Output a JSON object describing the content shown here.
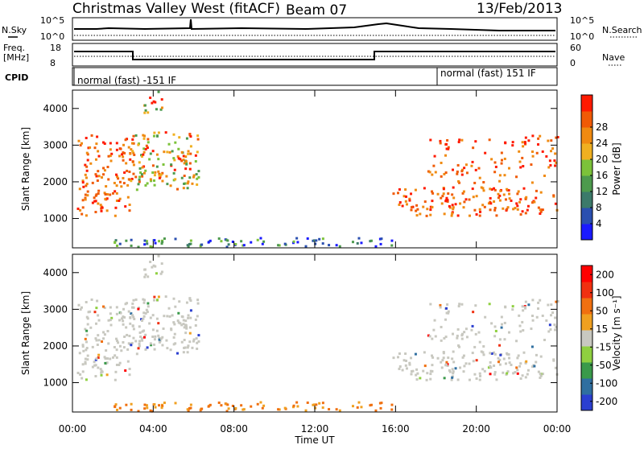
{
  "header": {
    "station": "Christmas Valley West (fitACF)",
    "beam": "Beam 07",
    "date": "13/Feb/2013"
  },
  "nsky_panel": {
    "left_label": "N.Sky",
    "left_ticks": [
      "10^5",
      "10^0"
    ],
    "right_label": "N.Search",
    "right_ticks": [
      "10^5",
      "10^0"
    ]
  },
  "freq_panel": {
    "left_label_1": "Freq.",
    "left_label_2": "[MHz]",
    "left_ticks": [
      "18",
      "8"
    ],
    "right_label": "Nave",
    "right_ticks": [
      "60",
      "0"
    ]
  },
  "cpid_panel": {
    "label": "CPID",
    "mode_1": "normal (fast) -151 IF",
    "mode_2": "normal (fast) 151 IF"
  },
  "colors": {
    "power_scale": [
      "#1a1aff",
      "#2a4fb0",
      "#3c7a6a",
      "#4d9a4d",
      "#7cc23a",
      "#f0b020",
      "#f08a10",
      "#f05a05",
      "#ff1a00"
    ],
    "velocity_scale": [
      "#2b3fd0",
      "#2f6fa0",
      "#3a9a4a",
      "#8fd040",
      "#c8c8c0",
      "#f0a020",
      "#f07010",
      "#f03010",
      "#ff0000"
    ]
  },
  "chart_data": [
    {
      "type": "heatmap",
      "panel": "power",
      "ylabel": "Slant Range [km]",
      "yticks": [
        "1000",
        "2000",
        "3000",
        "4000"
      ],
      "ylim": [
        200,
        4500
      ],
      "xticks": [
        "00:00",
        "04:00",
        "08:00",
        "12:00",
        "16:00",
        "20:00",
        "00:00"
      ],
      "colorbar_label": "Power [dB]",
      "colorbar_ticks": [
        "4",
        "8",
        "12",
        "16",
        "20",
        "24",
        "28"
      ]
    },
    {
      "type": "heatmap",
      "panel": "velocity",
      "ylabel": "Slant Range [km]",
      "yticks": [
        "1000",
        "2000",
        "3000",
        "4000"
      ],
      "ylim": [
        200,
        4500
      ],
      "xticks": [
        "00:00",
        "04:00",
        "08:00",
        "12:00",
        "16:00",
        "20:00",
        "00:00"
      ],
      "xlabel": "Time UT",
      "colorbar_label": "Velocity [m s⁻¹]",
      "colorbar_ticks": [
        "200",
        "100",
        "50",
        "15",
        "-15",
        "-50",
        "-100",
        "-200"
      ]
    }
  ]
}
